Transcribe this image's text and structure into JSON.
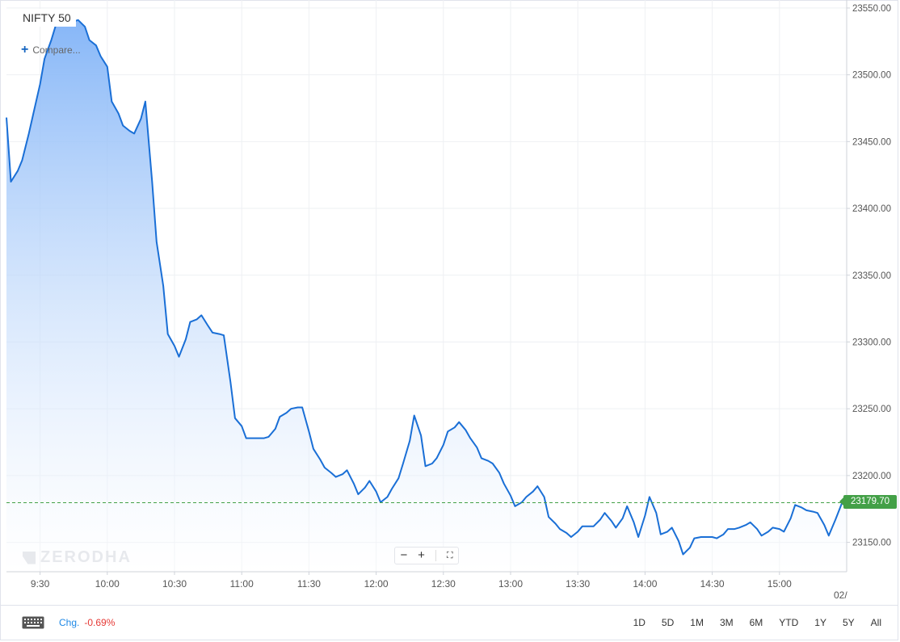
{
  "header": {
    "symbol": "NIFTY 50",
    "compare_label": "Compare..."
  },
  "watermark": {
    "text": "ZERODHA"
  },
  "zoom": {
    "zoom_out_icon": "minus-icon",
    "zoom_in_icon": "plus-icon",
    "fit_icon": "fit-screen-icon"
  },
  "footer": {
    "keyboard_icon": "keyboard-icon",
    "chg_label": "Chg.",
    "chg_value": "-0.69%",
    "ranges": [
      "1D",
      "5D",
      "1M",
      "3M",
      "6M",
      "YTD",
      "1Y",
      "5Y",
      "All"
    ]
  },
  "colors": {
    "line": "#1a6fd6",
    "fill_top": "#7fb2f7",
    "fill_bottom": "#ffffff",
    "last_price_tag": "#43a047",
    "change_negative": "#e53935",
    "chg_label": "#1e88e5"
  },
  "chart_data": {
    "type": "area",
    "title": "",
    "xlabel": "",
    "ylabel": "",
    "x_domain_minutes": [
      555,
      930
    ],
    "ylim": [
      23128,
      23556
    ],
    "y_ticks": [
      "23150.00",
      "23200.00",
      "23250.00",
      "23300.00",
      "23350.00",
      "23400.00",
      "23450.00",
      "23500.00",
      "23550.00"
    ],
    "x_ticks": [
      "9:30",
      "10:00",
      "10:30",
      "11:00",
      "11:30",
      "12:00",
      "12:30",
      "13:00",
      "13:30",
      "14:00",
      "14:30",
      "15:00"
    ],
    "x_edge_label": "02/",
    "last_price": 23179.7,
    "last_price_label": "23179.70",
    "grid": true,
    "series": [
      {
        "x": [
          "09:15",
          "09:17",
          "09:20",
          "09:22",
          "09:25",
          "09:27",
          "09:30",
          "09:32",
          "09:35",
          "09:37",
          "09:40",
          "09:42",
          "09:45",
          "09:47",
          "09:50",
          "09:52",
          "09:55",
          "09:57",
          "10:00",
          "10:02",
          "10:05",
          "10:07",
          "10:10",
          "10:12",
          "10:15",
          "10:17",
          "10:20",
          "10:22",
          "10:25",
          "10:27",
          "10:30",
          "10:32",
          "10:35",
          "10:37",
          "10:40",
          "10:42",
          "10:45",
          "10:47",
          "10:50",
          "10:52",
          "10:55",
          "10:57",
          "11:00",
          "11:02",
          "11:05",
          "11:07",
          "11:10",
          "11:12",
          "11:15",
          "11:17",
          "11:20",
          "11:22",
          "11:25",
          "11:27",
          "11:30",
          "11:32",
          "11:35",
          "11:37",
          "11:40",
          "11:42",
          "11:45",
          "11:47",
          "11:50",
          "11:52",
          "11:55",
          "11:57",
          "12:00",
          "12:02",
          "12:05",
          "12:07",
          "12:10",
          "12:12",
          "12:15",
          "12:17",
          "12:20",
          "12:22",
          "12:25",
          "12:27",
          "12:30",
          "12:32",
          "12:35",
          "12:37",
          "12:40",
          "12:42",
          "12:45",
          "12:47",
          "12:50",
          "12:52",
          "12:55",
          "12:57",
          "13:00",
          "13:02",
          "13:05",
          "13:07",
          "13:10",
          "13:12",
          "13:15",
          "13:17",
          "13:20",
          "13:22",
          "13:25",
          "13:27",
          "13:30",
          "13:32",
          "13:35",
          "13:37",
          "13:40",
          "13:42",
          "13:45",
          "13:47",
          "13:50",
          "13:52",
          "13:55",
          "13:57",
          "14:00",
          "14:02",
          "14:05",
          "14:07",
          "14:10",
          "14:12",
          "14:15",
          "14:17",
          "14:20",
          "14:22",
          "14:25",
          "14:27",
          "14:30",
          "14:32",
          "14:35",
          "14:37",
          "14:40",
          "14:42",
          "14:45",
          "14:47",
          "14:50",
          "14:52",
          "14:55",
          "14:57",
          "15:00",
          "15:02",
          "15:05",
          "15:07",
          "15:10",
          "15:12",
          "15:15",
          "15:17",
          "15:20",
          "15:22",
          "15:25",
          "15:28",
          "15:30"
        ],
        "values": [
          23468,
          23420,
          23428,
          23436,
          23456,
          23471,
          23493,
          23512,
          23526,
          23537,
          23541,
          23543,
          23540,
          23541,
          23536,
          23526,
          23522,
          23514,
          23506,
          23480,
          23471,
          23462,
          23458,
          23456,
          23467,
          23480,
          23420,
          23375,
          23342,
          23306,
          23297,
          23289,
          23302,
          23315,
          23317,
          23320,
          23312,
          23307,
          23306,
          23305,
          23270,
          23243,
          23237,
          23228,
          23228,
          23228,
          23228,
          23229,
          23235,
          23244,
          23247,
          23250,
          23251,
          23251,
          23233,
          23220,
          23212,
          23206,
          23202,
          23199,
          23201,
          23204,
          23194,
          23186,
          23191,
          23196,
          23188,
          23180,
          23184,
          23190,
          23198,
          23209,
          23226,
          23245,
          23230,
          23207,
          23209,
          23213,
          23223,
          23233,
          23236,
          23240,
          23234,
          23228,
          23221,
          23213,
          23211,
          23209,
          23202,
          23194,
          23185,
          23177,
          23180,
          23184,
          23188,
          23192,
          23184,
          23169,
          23164,
          23160,
          23157,
          23154,
          23158,
          23162,
          23162,
          23162,
          23167,
          23172,
          23166,
          23161,
          23168,
          23177,
          23165,
          23154,
          23170,
          23184,
          23172,
          23156,
          23158,
          23161,
          23151,
          23141,
          23146,
          23153,
          23154,
          23154,
          23154,
          23153,
          23156,
          23160,
          23160,
          23161,
          23163,
          23165,
          23160,
          23155,
          23158,
          23161,
          23160,
          23158,
          23168,
          23178,
          23176,
          23174,
          23173,
          23172,
          23163,
          23155,
          23167,
          23180,
          23182
        ]
      }
    ]
  }
}
